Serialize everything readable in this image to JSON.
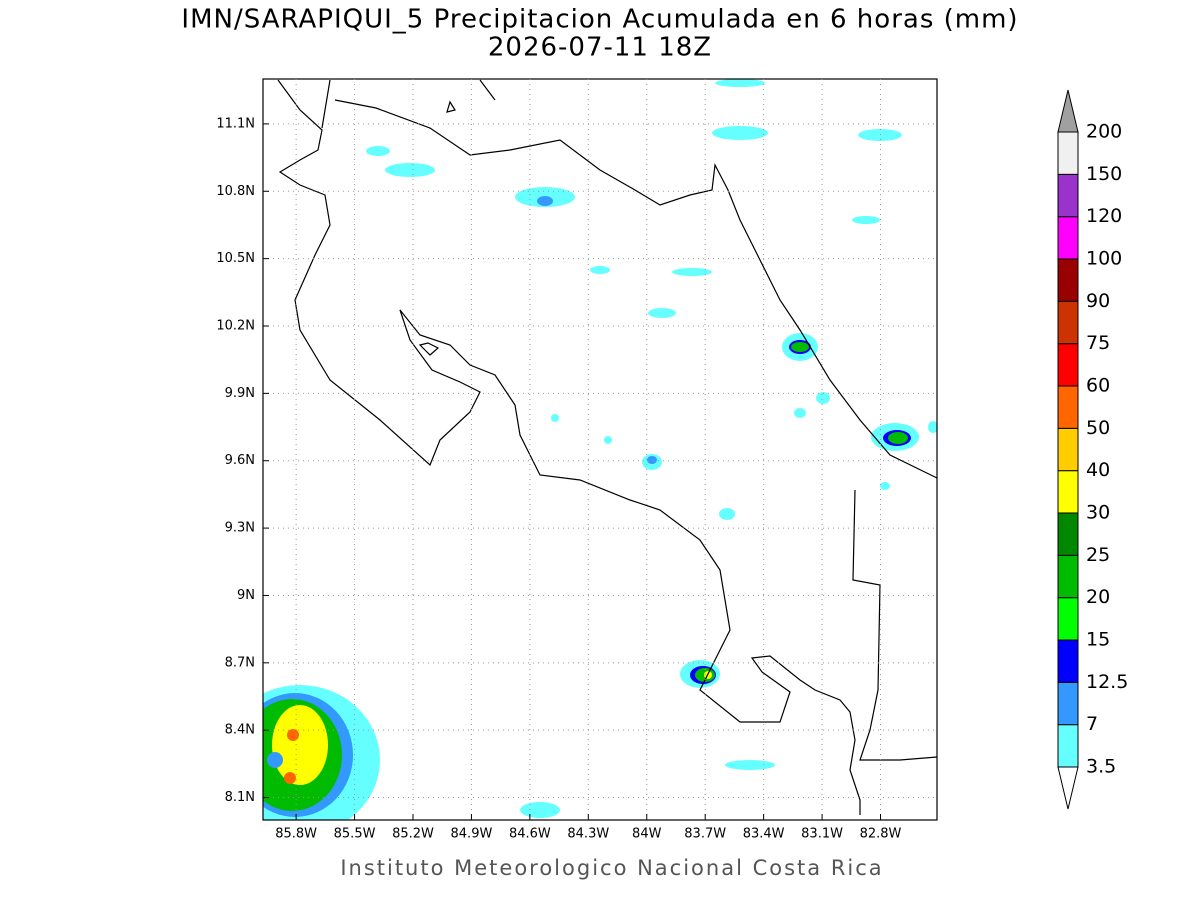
{
  "chart_data": {
    "type": "contour-map",
    "title": "IMN/SARAPIQUI_5 Precipitacion Acumulada en 6 horas (mm)",
    "subtitle": "2026-07-11 18Z",
    "footer": "Instituto Meteorologico Nacional Costa Rica",
    "xlim": [
      -85.97,
      -82.51
    ],
    "ylim": [
      8.0,
      11.3
    ],
    "xticks": [
      {
        "value": -85.8,
        "label": "85.8W"
      },
      {
        "value": -85.5,
        "label": "85.5W"
      },
      {
        "value": -85.2,
        "label": "85.2W"
      },
      {
        "value": -84.9,
        "label": "84.9W"
      },
      {
        "value": -84.6,
        "label": "84.6W"
      },
      {
        "value": -84.3,
        "label": "84.3W"
      },
      {
        "value": -84.0,
        "label": "84W"
      },
      {
        "value": -83.7,
        "label": "83.7W"
      },
      {
        "value": -83.4,
        "label": "83.4W"
      },
      {
        "value": -83.1,
        "label": "83.1W"
      },
      {
        "value": -82.8,
        "label": "82.8W"
      }
    ],
    "yticks": [
      {
        "value": 8.1,
        "label": "8.1N"
      },
      {
        "value": 8.4,
        "label": "8.4N"
      },
      {
        "value": 8.7,
        "label": "8.7N"
      },
      {
        "value": 9.0,
        "label": "9N"
      },
      {
        "value": 9.3,
        "label": "9.3N"
      },
      {
        "value": 9.6,
        "label": "9.6N"
      },
      {
        "value": 9.9,
        "label": "9.9N"
      },
      {
        "value": 10.2,
        "label": "10.2N"
      },
      {
        "value": 10.5,
        "label": "10.5N"
      },
      {
        "value": 10.8,
        "label": "10.8N"
      },
      {
        "value": 11.1,
        "label": "11.1N"
      }
    ],
    "grid": true,
    "colorbar": {
      "levels": [
        3.5,
        7,
        12.5,
        15,
        20,
        25,
        30,
        40,
        50,
        60,
        75,
        90,
        100,
        120,
        150,
        200
      ],
      "colors": [
        "#66ffff",
        "#3399ff",
        "#0000ff",
        "#00ff00",
        "#00bb00",
        "#008800",
        "#ffff00",
        "#ffcc00",
        "#ff6600",
        "#ff0000",
        "#cc3300",
        "#990000",
        "#ff00ff",
        "#9933cc",
        "#f0f0f0"
      ],
      "under_color": "#ffffff",
      "over_color": "#a0a0a0"
    }
  }
}
